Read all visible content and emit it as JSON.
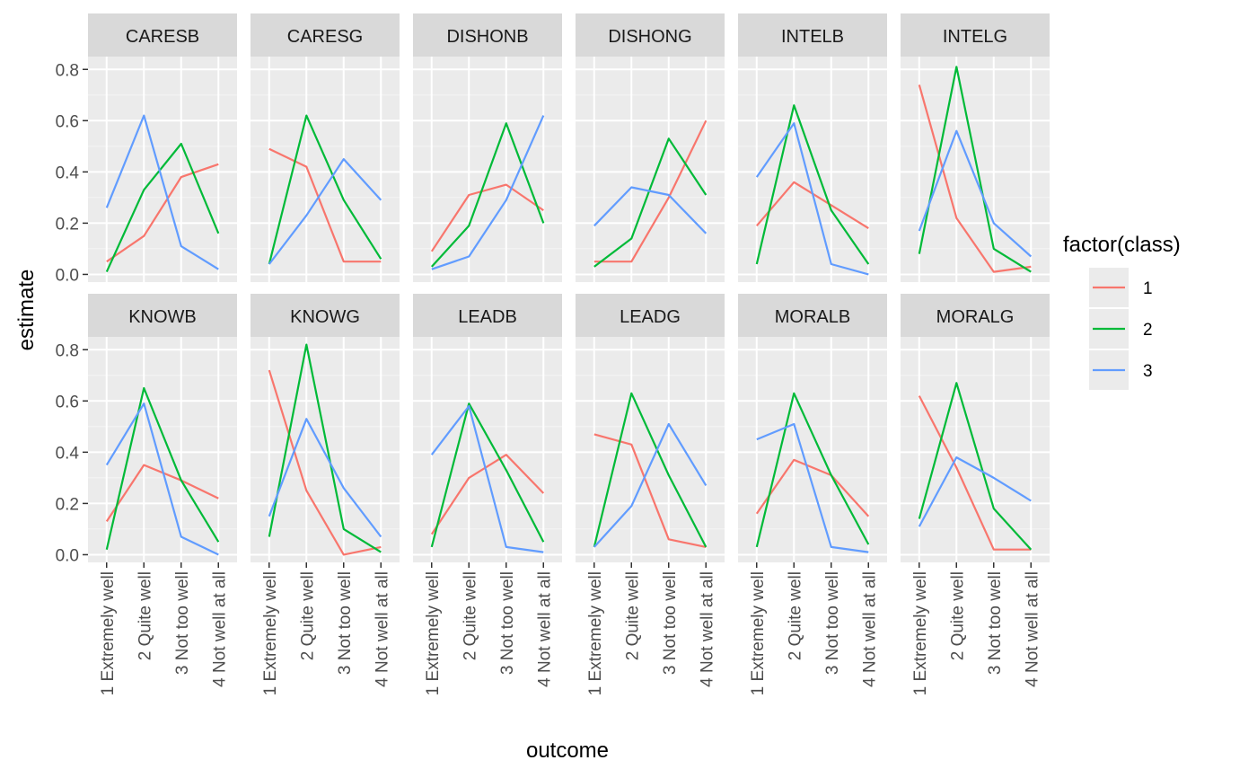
{
  "chart_data": {
    "type": "line",
    "layout": "facet_wrap 2x6",
    "xlabel": "outcome",
    "ylabel": "estimate",
    "ylim": [
      -0.03,
      0.85
    ],
    "yticks": [
      0.0,
      0.2,
      0.4,
      0.6,
      0.8
    ],
    "ytick_labels": [
      "0.0",
      "0.2",
      "0.4",
      "0.6",
      "0.8"
    ],
    "categories": [
      "1 Extremely well",
      "2 Quite well",
      "3 Not too well",
      "4 Not well at all"
    ],
    "legend": {
      "title": "factor(class)",
      "position": "right",
      "entries": [
        {
          "label": "1",
          "color": "#F8766D"
        },
        {
          "label": "2",
          "color": "#00BA38"
        },
        {
          "label": "3",
          "color": "#619CFF"
        }
      ]
    },
    "panels": [
      {
        "title": "CARESB",
        "series": [
          {
            "name": "1",
            "values": [
              0.05,
              0.15,
              0.38,
              0.43
            ]
          },
          {
            "name": "2",
            "values": [
              0.01,
              0.33,
              0.51,
              0.16
            ]
          },
          {
            "name": "3",
            "values": [
              0.26,
              0.62,
              0.11,
              0.02
            ]
          }
        ]
      },
      {
        "title": "CARESG",
        "series": [
          {
            "name": "1",
            "values": [
              0.49,
              0.42,
              0.05,
              0.05
            ]
          },
          {
            "name": "2",
            "values": [
              0.04,
              0.62,
              0.29,
              0.06
            ]
          },
          {
            "name": "3",
            "values": [
              0.04,
              0.23,
              0.45,
              0.29
            ]
          }
        ]
      },
      {
        "title": "DISHONB",
        "series": [
          {
            "name": "1",
            "values": [
              0.09,
              0.31,
              0.35,
              0.25
            ]
          },
          {
            "name": "2",
            "values": [
              0.03,
              0.19,
              0.59,
              0.2
            ]
          },
          {
            "name": "3",
            "values": [
              0.02,
              0.07,
              0.29,
              0.62
            ]
          }
        ]
      },
      {
        "title": "DISHONG",
        "series": [
          {
            "name": "1",
            "values": [
              0.05,
              0.05,
              0.3,
              0.6
            ]
          },
          {
            "name": "2",
            "values": [
              0.03,
              0.14,
              0.53,
              0.31
            ]
          },
          {
            "name": "3",
            "values": [
              0.19,
              0.34,
              0.31,
              0.16
            ]
          }
        ]
      },
      {
        "title": "INTELB",
        "series": [
          {
            "name": "1",
            "values": [
              0.19,
              0.36,
              0.27,
              0.18
            ]
          },
          {
            "name": "2",
            "values": [
              0.04,
              0.66,
              0.25,
              0.04
            ]
          },
          {
            "name": "3",
            "values": [
              0.38,
              0.59,
              0.04,
              0.0
            ]
          }
        ]
      },
      {
        "title": "INTELG",
        "series": [
          {
            "name": "1",
            "values": [
              0.74,
              0.22,
              0.01,
              0.03
            ]
          },
          {
            "name": "2",
            "values": [
              0.08,
              0.81,
              0.1,
              0.01
            ]
          },
          {
            "name": "3",
            "values": [
              0.17,
              0.56,
              0.2,
              0.07
            ]
          }
        ]
      },
      {
        "title": "KNOWB",
        "series": [
          {
            "name": "1",
            "values": [
              0.13,
              0.35,
              0.29,
              0.22
            ]
          },
          {
            "name": "2",
            "values": [
              0.02,
              0.65,
              0.29,
              0.05
            ]
          },
          {
            "name": "3",
            "values": [
              0.35,
              0.59,
              0.07,
              0.0
            ]
          }
        ]
      },
      {
        "title": "KNOWG",
        "series": [
          {
            "name": "1",
            "values": [
              0.72,
              0.25,
              0.0,
              0.03
            ]
          },
          {
            "name": "2",
            "values": [
              0.07,
              0.82,
              0.1,
              0.01
            ]
          },
          {
            "name": "3",
            "values": [
              0.15,
              0.53,
              0.26,
              0.07
            ]
          }
        ]
      },
      {
        "title": "LEADB",
        "series": [
          {
            "name": "1",
            "values": [
              0.08,
              0.3,
              0.39,
              0.24
            ]
          },
          {
            "name": "2",
            "values": [
              0.03,
              0.59,
              0.33,
              0.05
            ]
          },
          {
            "name": "3",
            "values": [
              0.39,
              0.58,
              0.03,
              0.01
            ]
          }
        ]
      },
      {
        "title": "LEADG",
        "series": [
          {
            "name": "1",
            "values": [
              0.47,
              0.43,
              0.06,
              0.03
            ]
          },
          {
            "name": "2",
            "values": [
              0.03,
              0.63,
              0.31,
              0.03
            ]
          },
          {
            "name": "3",
            "values": [
              0.03,
              0.19,
              0.51,
              0.27
            ]
          }
        ]
      },
      {
        "title": "MORALB",
        "series": [
          {
            "name": "1",
            "values": [
              0.16,
              0.37,
              0.31,
              0.15
            ]
          },
          {
            "name": "2",
            "values": [
              0.03,
              0.63,
              0.31,
              0.04
            ]
          },
          {
            "name": "3",
            "values": [
              0.45,
              0.51,
              0.03,
              0.01
            ]
          }
        ]
      },
      {
        "title": "MORALG",
        "series": [
          {
            "name": "1",
            "values": [
              0.62,
              0.34,
              0.02,
              0.02
            ]
          },
          {
            "name": "2",
            "values": [
              0.14,
              0.67,
              0.18,
              0.02
            ]
          },
          {
            "name": "3",
            "values": [
              0.11,
              0.38,
              0.3,
              0.21
            ]
          }
        ]
      }
    ]
  }
}
